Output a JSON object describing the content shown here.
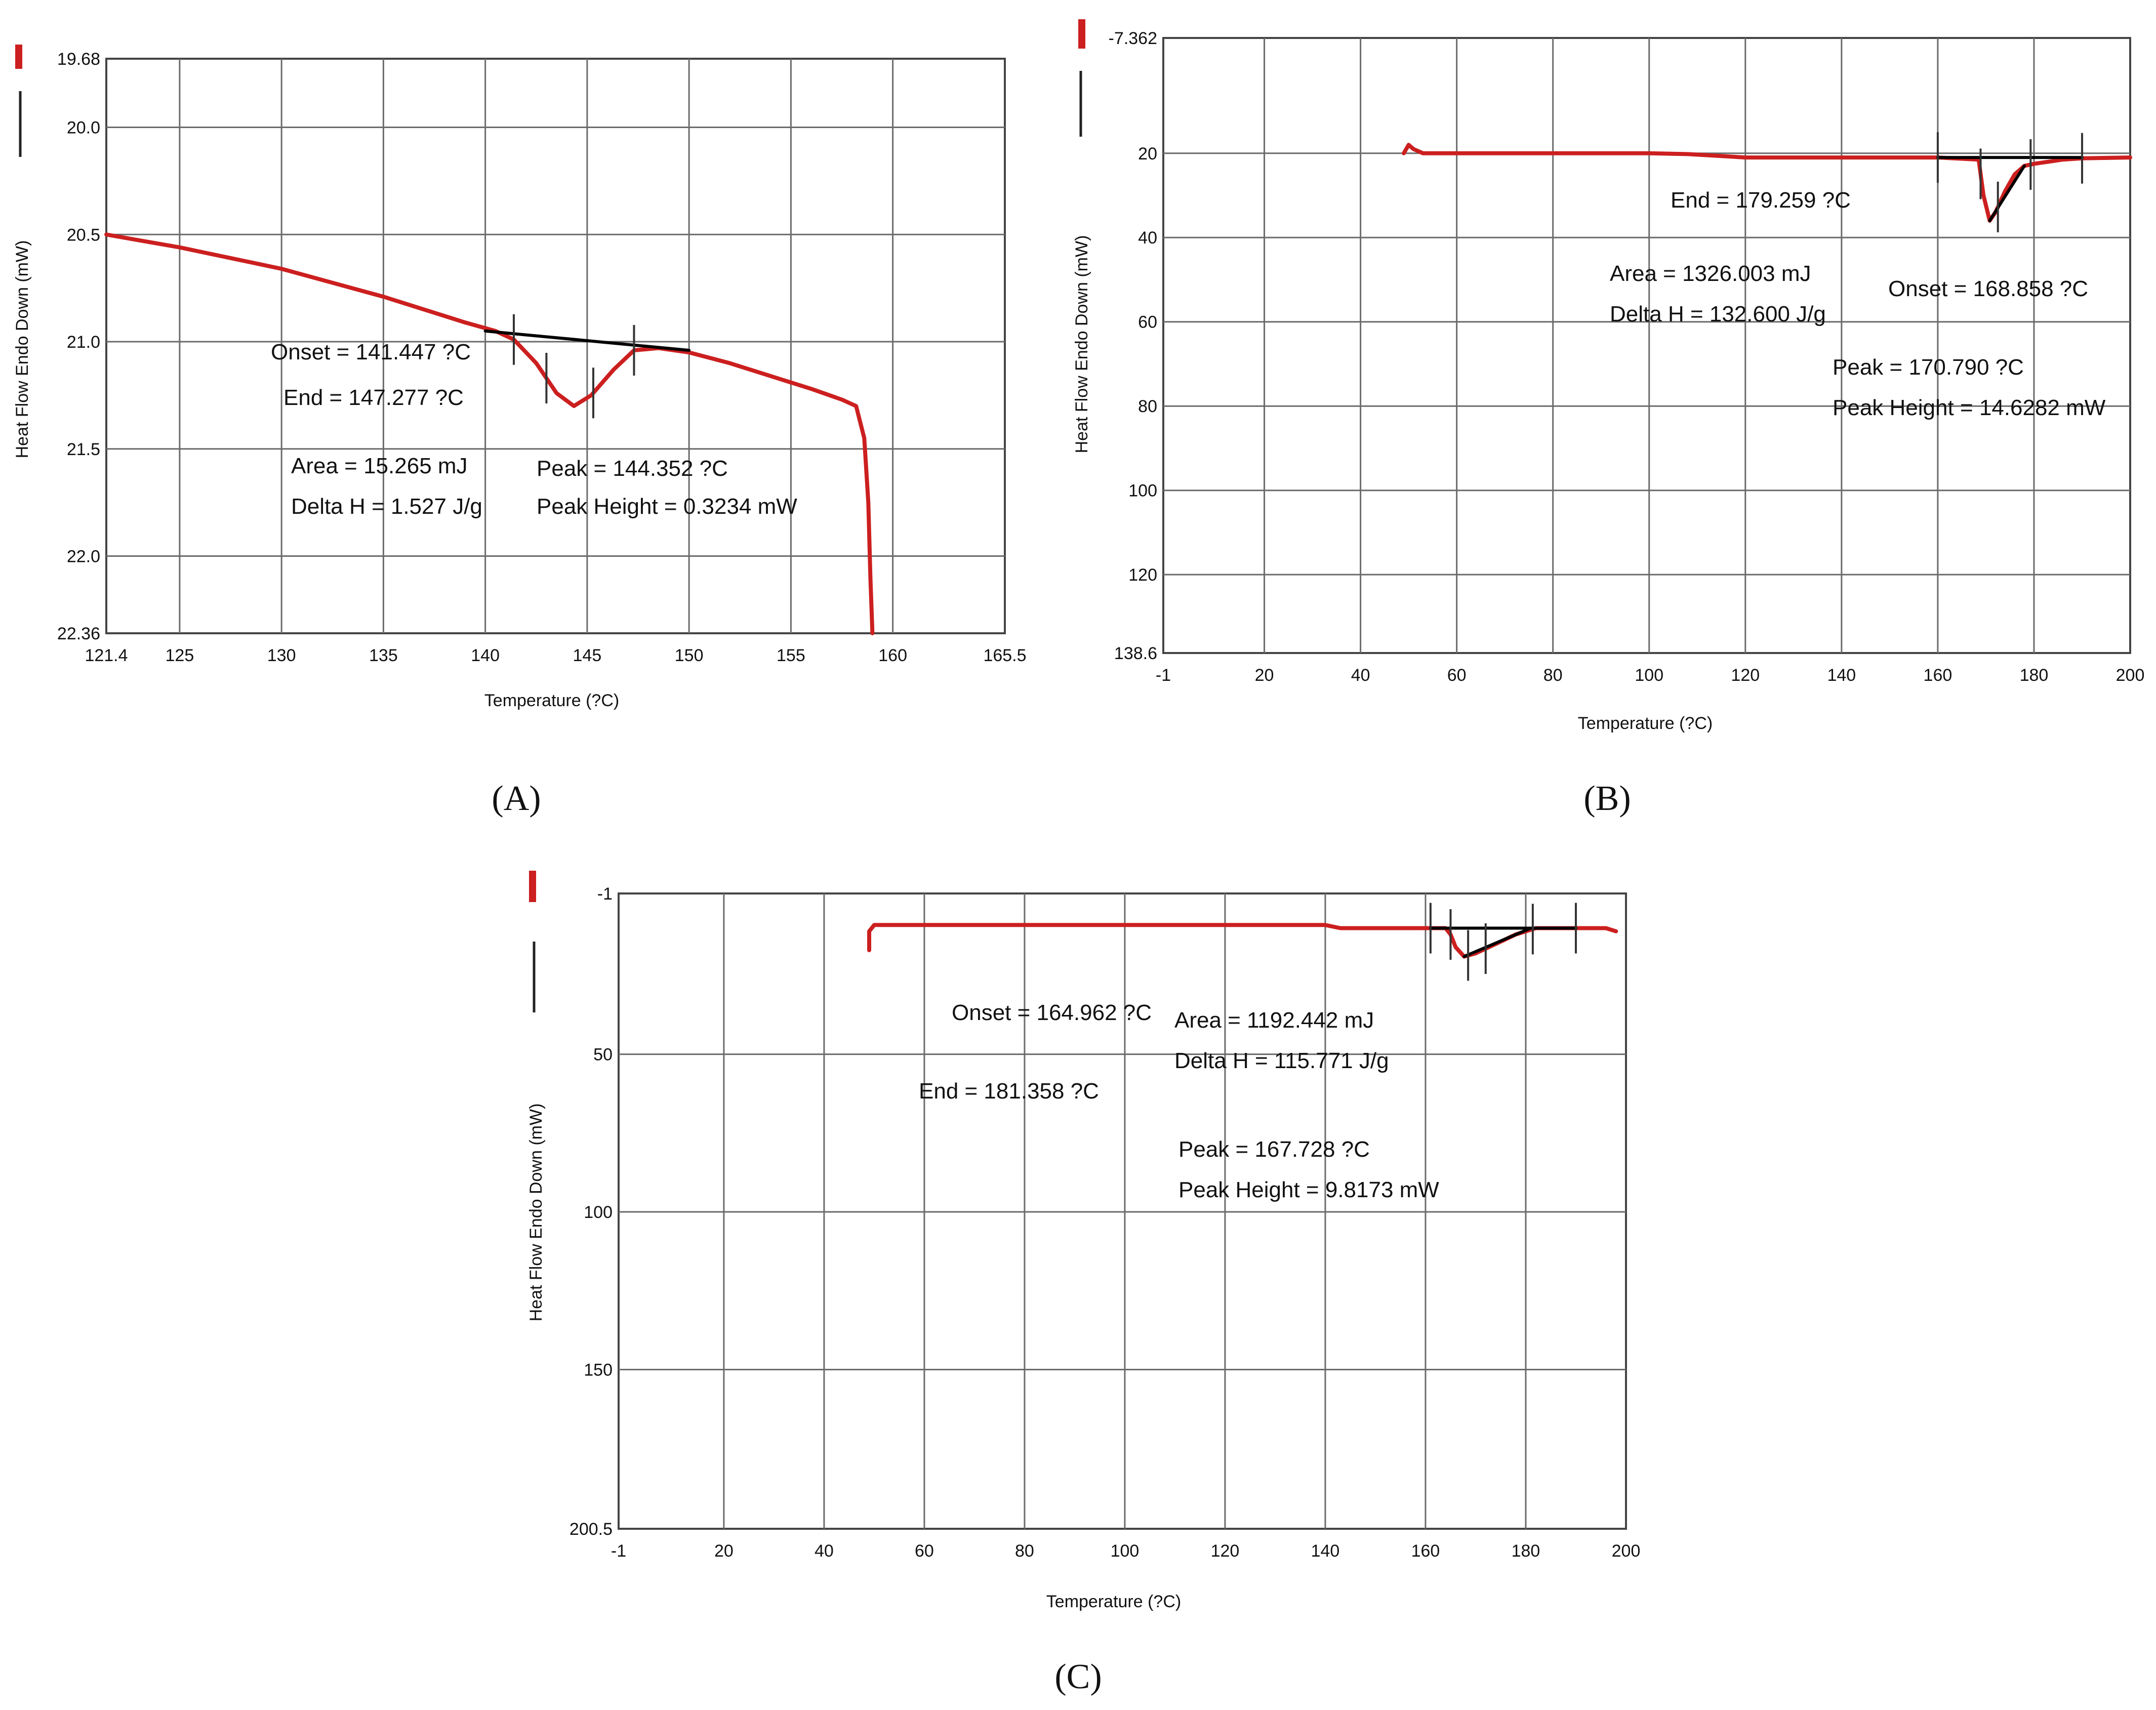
{
  "chart_data": [
    {
      "panel": "A",
      "type": "line",
      "caption": "(A)",
      "xlabel": "Temperature (?C)",
      "ylabel": "Heat Flow Endo Down (mW)",
      "xlim": [
        121.4,
        165.5
      ],
      "ylim": [
        19.68,
        22.36
      ],
      "y_inverted": true,
      "x_ticks": [
        121.4,
        125,
        130,
        135,
        140,
        145,
        150,
        155,
        160,
        165.5
      ],
      "x_tick_labels": [
        "121.4",
        "125",
        "130",
        "135",
        "140",
        "145",
        "150",
        "155",
        "160",
        "165.5"
      ],
      "y_ticks": [
        19.68,
        20.0,
        20.5,
        21.0,
        21.5,
        22.0,
        22.36
      ],
      "y_tick_labels": [
        "19.68",
        "20.0",
        "20.5",
        "21.0",
        "21.5",
        "22.0",
        "22.36"
      ],
      "series": [
        {
          "name": "heat flow",
          "color": "#cc1f1f",
          "x": [
            121.4,
            125,
            130,
            135,
            139,
            140.5,
            141.4,
            142.5,
            143.5,
            144.35,
            145.2,
            146.3,
            147.3,
            148.5,
            150,
            152,
            154,
            156,
            157.5,
            158.2,
            158.6,
            158.8,
            158.9,
            159.0
          ],
          "y": [
            20.5,
            20.56,
            20.66,
            20.79,
            20.91,
            20.95,
            20.99,
            21.1,
            21.24,
            21.3,
            21.25,
            21.13,
            21.04,
            21.03,
            21.05,
            21.1,
            21.16,
            21.22,
            21.27,
            21.3,
            21.45,
            21.75,
            22.1,
            22.36
          ]
        },
        {
          "name": "baseline",
          "color": "#000000",
          "x": [
            140,
            150
          ],
          "y": [
            20.95,
            21.04
          ]
        }
      ],
      "ticks_at": [
        141.4,
        143,
        145.3,
        147.3
      ],
      "annotations": {
        "onset": "Onset = 141.447 ?C",
        "end": "End = 147.277 ?C",
        "area": "Area = 15.265 mJ",
        "delta_h": "Delta H = 1.527 J/g",
        "peak": "Peak = 144.352 ?C",
        "peak_height": "Peak Height = 0.3234 mW"
      }
    },
    {
      "panel": "B",
      "type": "line",
      "caption": "(B)",
      "xlabel": "Temperature (?C)",
      "ylabel": "Heat Flow Endo Down (mW)",
      "xlim": [
        -1,
        200
      ],
      "ylim": [
        -7.362,
        138.6
      ],
      "y_inverted": true,
      "x_ticks": [
        -1,
        20,
        40,
        60,
        80,
        100,
        120,
        140,
        160,
        180,
        200
      ],
      "x_tick_labels": [
        "-1",
        "20",
        "40",
        "60",
        "80",
        "100",
        "120",
        "140",
        "160",
        "180",
        "200"
      ],
      "y_ticks": [
        -7.362,
        20,
        40,
        60,
        80,
        100,
        120,
        138.6
      ],
      "y_tick_labels": [
        "-7.362",
        "20",
        "40",
        "60",
        "80",
        "100",
        "120",
        "138.6"
      ],
      "series": [
        {
          "name": "heat flow",
          "color": "#cc1f1f",
          "x": [
            49,
            50,
            51,
            53,
            60,
            80,
            100,
            108,
            120,
            140,
            160,
            168.5,
            169.5,
            170.8,
            172,
            174,
            176,
            178,
            180,
            183,
            186,
            190,
            200
          ],
          "y": [
            20,
            18,
            19,
            20,
            20,
            20,
            20,
            20.2,
            21,
            21,
            21,
            21.5,
            30,
            36,
            34,
            29,
            25,
            23,
            22.5,
            22,
            21.5,
            21.2,
            21
          ],
          "marker_x": 50,
          "marker_y": 18
        },
        {
          "name": "baseline",
          "color": "#000000",
          "x": [
            160,
            180,
            190
          ],
          "y": [
            21,
            21,
            21
          ]
        },
        {
          "name": "tangent",
          "color": "#000000",
          "x": [
            170.8,
            178
          ],
          "y": [
            36,
            23
          ]
        }
      ],
      "ticks_at": [
        160,
        168.9,
        172.5,
        179.3,
        190
      ],
      "annotations": {
        "end": "End = 179.259 ?C",
        "area": "Area = 1326.003 mJ",
        "delta_h": "Delta H = 132.600 J/g",
        "onset": "Onset = 168.858 ?C",
        "peak": "Peak = 170.790 ?C",
        "peak_height": "Peak Height = 14.6282 mW"
      }
    },
    {
      "panel": "C",
      "type": "line",
      "caption": "(C)",
      "xlabel": "Temperature (?C)",
      "ylabel": "Heat Flow Endo Down (mW)",
      "xlim": [
        -1,
        200
      ],
      "ylim": [
        -1,
        200.5
      ],
      "y_inverted": true,
      "x_ticks": [
        -1,
        20,
        40,
        60,
        80,
        100,
        120,
        140,
        160,
        180,
        200
      ],
      "x_tick_labels": [
        "-1",
        "20",
        "40",
        "60",
        "80",
        "100",
        "120",
        "140",
        "160",
        "180",
        "200"
      ],
      "y_ticks": [
        -1,
        50,
        100,
        150,
        200.5
      ],
      "y_tick_labels": [
        "-1",
        "50",
        "100",
        "150",
        "200.5"
      ],
      "series": [
        {
          "name": "heat flow",
          "color": "#cc1f1f",
          "x": [
            49,
            49,
            50,
            60,
            80,
            100,
            120,
            140,
            143,
            160,
            164,
            165,
            166,
            167.7,
            170,
            174,
            178,
            182,
            190,
            196,
            198
          ],
          "y": [
            17,
            11,
            9,
            9,
            9,
            9,
            9,
            9,
            10,
            10,
            10,
            12,
            16,
            19,
            18,
            15,
            12,
            10,
            10,
            10,
            11
          ]
        },
        {
          "name": "baseline",
          "color": "#000000",
          "x": [
            161,
            181,
            190
          ],
          "y": [
            10,
            10,
            10
          ]
        },
        {
          "name": "tangent",
          "color": "#000000",
          "x": [
            167.7,
            181
          ],
          "y": [
            19,
            10
          ]
        }
      ],
      "ticks_at": [
        161,
        165,
        168.5,
        172,
        181.4,
        190
      ],
      "annotations": {
        "onset": "Onset = 164.962 ?C",
        "end": "End = 181.358 ?C",
        "area": "Area = 1192.442 mJ",
        "delta_h": "Delta H = 115.771 J/g",
        "peak": "Peak = 167.728 ?C",
        "peak_height": "Peak Height = 9.8173 mW"
      }
    }
  ]
}
